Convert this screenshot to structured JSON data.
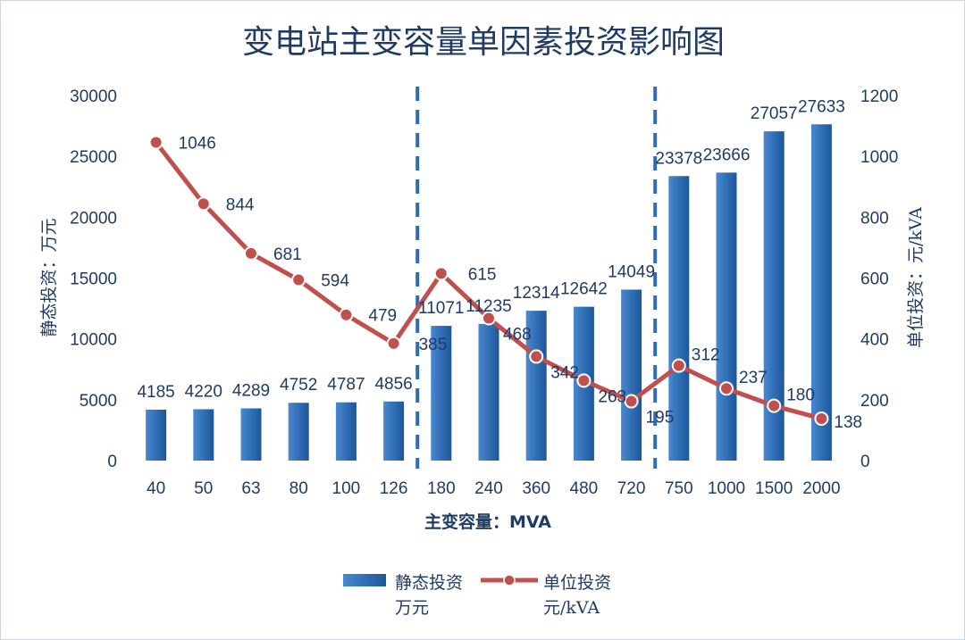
{
  "chart_data": {
    "type": "bar+line",
    "title": "变电站主变容量单因素投资影响图",
    "categories": [
      "40",
      "50",
      "63",
      "80",
      "100",
      "126",
      "180",
      "240",
      "360",
      "480",
      "720",
      "750",
      "1000",
      "1500",
      "2000"
    ],
    "series": [
      {
        "name": "静态投资万元",
        "legend_lines": [
          "静态投资",
          "万元"
        ],
        "type": "bar",
        "axis": "left",
        "color": "#2e6db4",
        "values": [
          4185,
          4220,
          4289,
          4752,
          4787,
          4856,
          11071,
          11235,
          12314,
          12642,
          14049,
          23378,
          23666,
          27057,
          27633
        ],
        "labels": [
          "4185",
          "4220",
          "4289",
          "4752",
          "4787",
          "4856",
          "11071",
          "11235",
          "12314",
          "12642",
          "14049",
          "23378",
          "23666",
          "27057",
          "27633"
        ]
      },
      {
        "name": "单位投资元/kVA",
        "legend_lines": [
          "单位投资",
          "元/kVA"
        ],
        "type": "line",
        "axis": "right",
        "color": "#c0504d",
        "values": [
          1046,
          844,
          681,
          594,
          479,
          385,
          615,
          468,
          342,
          263,
          195,
          312,
          237,
          180,
          138
        ],
        "labels": [
          "1046",
          "844",
          "681",
          "594",
          "479",
          "385",
          "615",
          "468",
          "342",
          "263",
          "195",
          "312",
          "237",
          "180",
          "138"
        ]
      }
    ],
    "xlabel": "主变容量：MVA",
    "ylabel_left": "静态投资：万元",
    "ylabel_right": "单位投资：元/kVA",
    "ylim_left": [
      0,
      30000
    ],
    "ylim_right": [
      0,
      1200
    ],
    "yticks_left": [
      "0",
      "5000",
      "10000",
      "15000",
      "20000",
      "25000",
      "30000"
    ],
    "yticks_right": [
      "0",
      "200",
      "400",
      "600",
      "800",
      "1000",
      "1200"
    ],
    "dashed_dividers_after": [
      "126",
      "720"
    ],
    "grid": false,
    "legend_position": "bottom"
  }
}
